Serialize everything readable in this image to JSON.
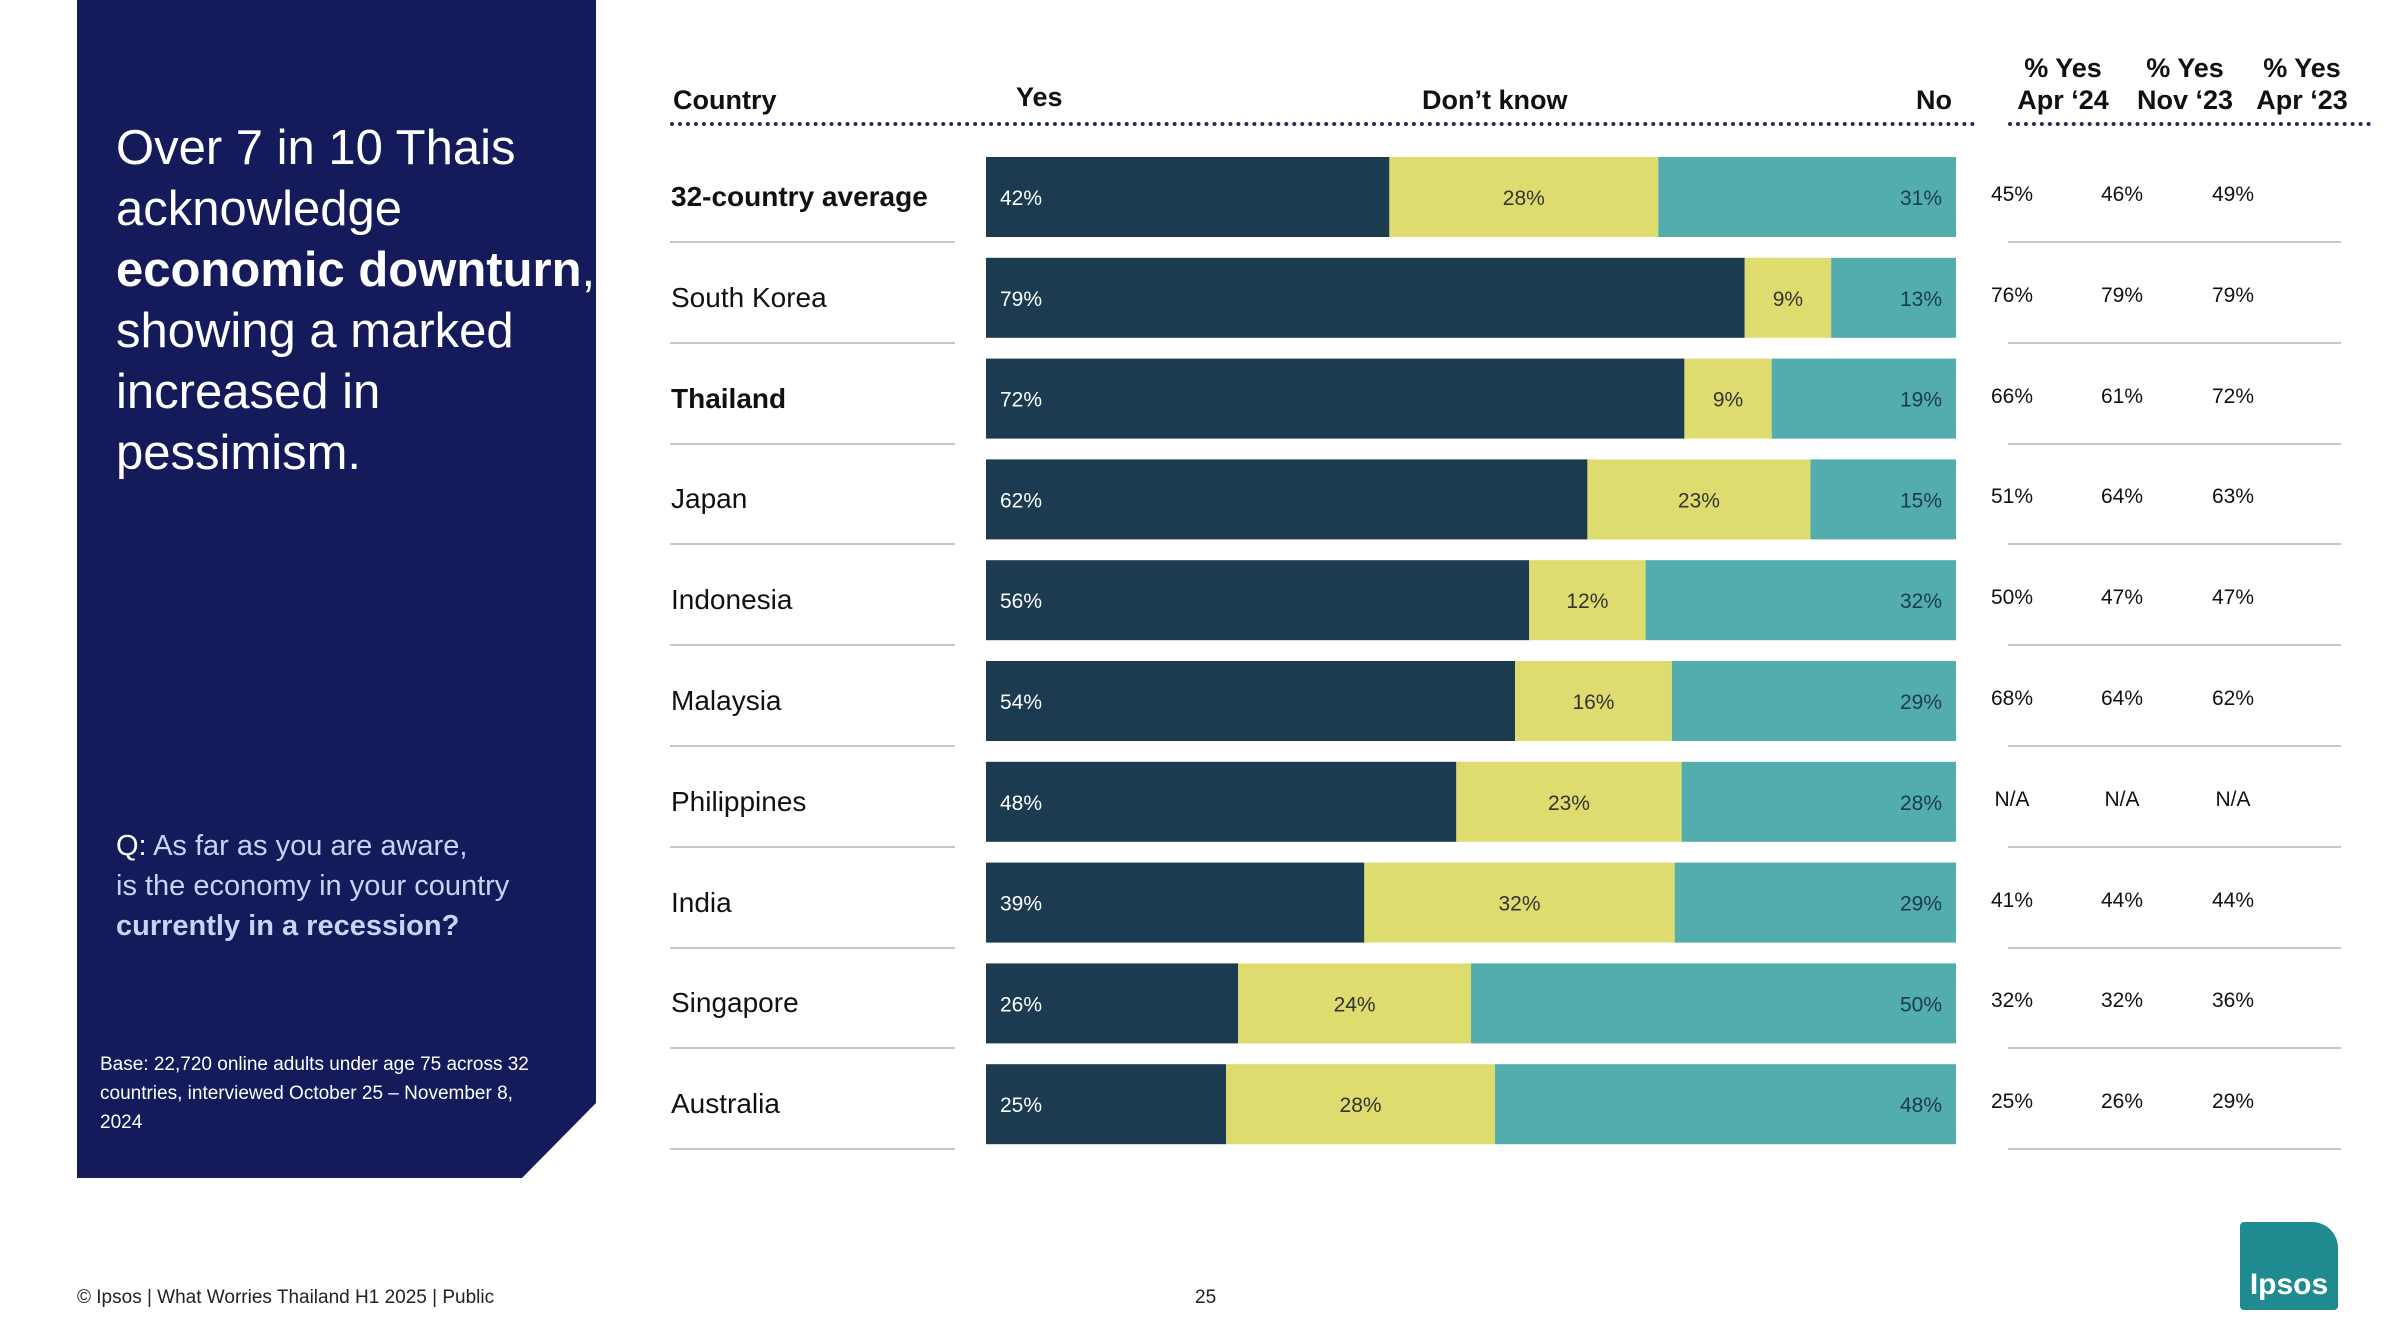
{
  "headline": {
    "line1": "Over 7 in 10 Thais",
    "line2": "acknowledge",
    "line3_bold": "economic downturn",
    "line3_tail": ",",
    "line4": "showing a marked",
    "line5": "increased in",
    "line6": "pessimism."
  },
  "question": {
    "prefix": "Q:",
    "line1": " As far as you are aware,",
    "line2": "is the economy in your country",
    "line3_bold": "currently in a recession?"
  },
  "base_note": "Base: 22,720 online adults under age 75 across 32 countries, interviewed October 25 – November 8, 2024",
  "headers": {
    "country": "Country",
    "yes": "Yes",
    "dont_know": "Don’t know",
    "no": "No",
    "hist": [
      {
        "l1": "% Yes",
        "l2": "Apr ‘24"
      },
      {
        "l1": "% Yes",
        "l2": "Nov ‘23"
      },
      {
        "l1": "% Yes",
        "l2": "Apr ‘23"
      }
    ]
  },
  "footer": {
    "left": "© Ipsos | What Worries Thailand H1 2025 | Public",
    "page": "25",
    "logo": "Ipsos"
  },
  "colors": {
    "panel": "#141a5a",
    "yes": "#1c3a50",
    "dont_know": "#dedc6e",
    "no": "#52adac"
  },
  "chart_data": {
    "type": "bar",
    "orientation": "horizontal",
    "stacked": true,
    "categories": [
      "32-country average",
      "South Korea",
      "Thailand",
      "Japan",
      "Indonesia",
      "Malaysia",
      "Philippines",
      "India",
      "Singapore",
      "Australia"
    ],
    "bold_categories": [
      "32-country average",
      "Thailand"
    ],
    "series": [
      {
        "name": "Yes",
        "values": [
          42,
          79,
          72,
          62,
          56,
          54,
          48,
          39,
          26,
          25
        ]
      },
      {
        "name": "Don’t know",
        "values": [
          28,
          9,
          9,
          23,
          12,
          16,
          23,
          32,
          24,
          28
        ]
      },
      {
        "name": "No",
        "values": [
          31,
          13,
          19,
          15,
          32,
          29,
          28,
          29,
          50,
          48
        ]
      }
    ],
    "value_suffix": "%",
    "history": {
      "columns": [
        "% Yes Apr ‘24",
        "% Yes Nov ‘23",
        "% Yes Apr ‘23"
      ],
      "rows": [
        [
          "45%",
          "46%",
          "49%"
        ],
        [
          "76%",
          "79%",
          "79%"
        ],
        [
          "66%",
          "61%",
          "72%"
        ],
        [
          "51%",
          "64%",
          "63%"
        ],
        [
          "50%",
          "47%",
          "47%"
        ],
        [
          "68%",
          "64%",
          "62%"
        ],
        [
          "N/A",
          "N/A",
          "N/A"
        ],
        [
          "41%",
          "44%",
          "44%"
        ],
        [
          "32%",
          "32%",
          "36%"
        ],
        [
          "25%",
          "26%",
          "29%"
        ]
      ]
    }
  }
}
